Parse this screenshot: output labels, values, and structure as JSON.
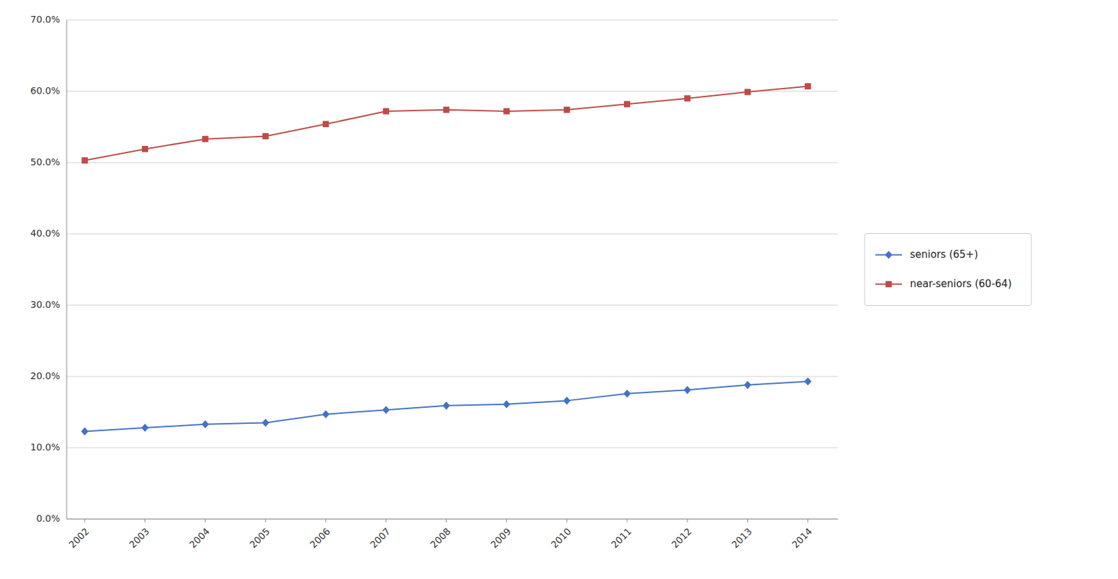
{
  "chart_data": {
    "type": "line",
    "x": [
      2002,
      2003,
      2004,
      2005,
      2006,
      2007,
      2008,
      2009,
      2010,
      2011,
      2012,
      2013,
      2014
    ],
    "series": [
      {
        "name": "seniors (65+)",
        "color": "#4472C4",
        "marker": "diamond",
        "values": [
          0.123,
          0.128,
          0.133,
          0.135,
          0.147,
          0.153,
          0.159,
          0.161,
          0.166,
          0.176,
          0.181,
          0.188,
          0.193
        ]
      },
      {
        "name": "near-seniors (60-64)",
        "color": "#BE4B48",
        "marker": "square",
        "values": [
          0.503,
          0.519,
          0.533,
          0.537,
          0.554,
          0.572,
          0.574,
          0.572,
          0.574,
          0.582,
          0.59,
          0.599,
          0.607
        ]
      }
    ],
    "xlim": [
      2001.7,
      2014.5
    ],
    "xticks": [
      2002,
      2003,
      2004,
      2005,
      2006,
      2007,
      2008,
      2009,
      2010,
      2011,
      2012,
      2013,
      2014
    ],
    "ylim": [
      0.0,
      0.7
    ],
    "yticks": [
      {
        "value": 0.0,
        "label": "0.0%"
      },
      {
        "value": 0.1,
        "label": "10.0%"
      },
      {
        "value": 0.2,
        "label": "20.0%"
      },
      {
        "value": 0.3,
        "label": "30.0%"
      },
      {
        "value": 0.4,
        "label": "40.0%"
      },
      {
        "value": 0.5,
        "label": "50.0%"
      },
      {
        "value": 0.6,
        "label": "60.0%"
      },
      {
        "value": 0.7,
        "label": "70.0%"
      }
    ],
    "grid": true,
    "legend": "right"
  }
}
